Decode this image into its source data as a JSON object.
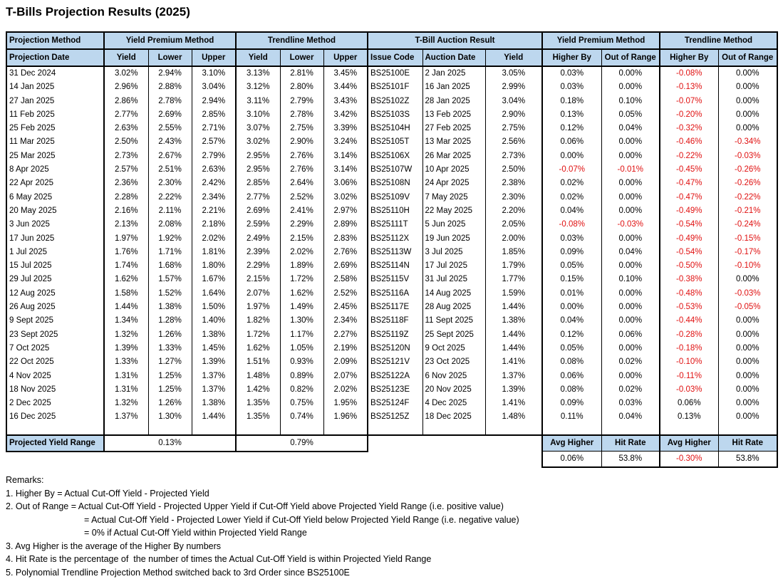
{
  "title": "T-Bills Projection Results (2025)",
  "colors": {
    "header_bg": "#BDD7EE",
    "negative_text": "#E01010",
    "border": "#000000"
  },
  "table": {
    "group_headers": [
      "Projection Method",
      "Yield Premium Method",
      "Trendline Method",
      "T-Bill Auction Result",
      "Yield Premium Method",
      "Trendline Method"
    ],
    "sub_headers": [
      "Projection Date",
      "Yield",
      "Lower",
      "Upper",
      "Yield",
      "Lower",
      "Upper",
      "Issue Code",
      "Auction Date",
      "Yield",
      "Higher By",
      "Out of Range",
      "Higher By",
      "Out of Range"
    ],
    "rows": [
      [
        "31 Dec 2024",
        "3.02%",
        "2.94%",
        "3.10%",
        "3.13%",
        "2.81%",
        "3.45%",
        "BS25100E",
        "2 Jan 2025",
        "3.05%",
        "0.03%",
        "0.00%",
        "-0.08%",
        "0.00%"
      ],
      [
        "14 Jan 2025",
        "2.96%",
        "2.88%",
        "3.04%",
        "3.12%",
        "2.80%",
        "3.44%",
        "BS25101F",
        "16 Jan 2025",
        "2.99%",
        "0.03%",
        "0.00%",
        "-0.13%",
        "0.00%"
      ],
      [
        "27 Jan 2025",
        "2.86%",
        "2.78%",
        "2.94%",
        "3.11%",
        "2.79%",
        "3.43%",
        "BS25102Z",
        "28 Jan 2025",
        "3.04%",
        "0.18%",
        "0.10%",
        "-0.07%",
        "0.00%"
      ],
      [
        "11 Feb 2025",
        "2.77%",
        "2.69%",
        "2.85%",
        "3.10%",
        "2.78%",
        "3.42%",
        "BS25103S",
        "13 Feb 2025",
        "2.90%",
        "0.13%",
        "0.05%",
        "-0.20%",
        "0.00%"
      ],
      [
        "25 Feb 2025",
        "2.63%",
        "2.55%",
        "2.71%",
        "3.07%",
        "2.75%",
        "3.39%",
        "BS25104H",
        "27 Feb 2025",
        "2.75%",
        "0.12%",
        "0.04%",
        "-0.32%",
        "0.00%"
      ],
      [
        "11 Mar 2025",
        "2.50%",
        "2.43%",
        "2.57%",
        "3.02%",
        "2.90%",
        "3.24%",
        "BS25105T",
        "13 Mar 2025",
        "2.56%",
        "0.06%",
        "0.00%",
        "-0.46%",
        "-0.34%"
      ],
      [
        "25 Mar 2025",
        "2.73%",
        "2.67%",
        "2.79%",
        "2.95%",
        "2.76%",
        "3.14%",
        "BS25106X",
        "26 Mar 2025",
        "2.73%",
        "0.00%",
        "0.00%",
        "-0.22%",
        "-0.03%"
      ],
      [
        "8 Apr 2025",
        "2.57%",
        "2.51%",
        "2.63%",
        "2.95%",
        "2.76%",
        "3.14%",
        "BS25107W",
        "10 Apr 2025",
        "2.50%",
        "-0.07%",
        "-0.01%",
        "-0.45%",
        "-0.26%"
      ],
      [
        "22 Apr 2025",
        "2.36%",
        "2.30%",
        "2.42%",
        "2.85%",
        "2.64%",
        "3.06%",
        "BS25108N",
        "24 Apr 2025",
        "2.38%",
        "0.02%",
        "0.00%",
        "-0.47%",
        "-0.26%"
      ],
      [
        "6 May 2025",
        "2.28%",
        "2.22%",
        "2.34%",
        "2.77%",
        "2.52%",
        "3.02%",
        "BS25109V",
        "7 May 2025",
        "2.30%",
        "0.02%",
        "0.00%",
        "-0.47%",
        "-0.22%"
      ],
      [
        "20 May 2025",
        "2.16%",
        "2.11%",
        "2.21%",
        "2.69%",
        "2.41%",
        "2.97%",
        "BS25110H",
        "22 May 2025",
        "2.20%",
        "0.04%",
        "0.00%",
        "-0.49%",
        "-0.21%"
      ],
      [
        "3 Jun 2025",
        "2.13%",
        "2.08%",
        "2.18%",
        "2.59%",
        "2.29%",
        "2.89%",
        "BS25111T",
        "5 Jun 2025",
        "2.05%",
        "-0.08%",
        "-0.03%",
        "-0.54%",
        "-0.24%"
      ],
      [
        "17 Jun 2025",
        "1.97%",
        "1.92%",
        "2.02%",
        "2.49%",
        "2.15%",
        "2.83%",
        "BS25112X",
        "19 Jun 2025",
        "2.00%",
        "0.03%",
        "0.00%",
        "-0.49%",
        "-0.15%"
      ],
      [
        "1 Jul 2025",
        "1.76%",
        "1.71%",
        "1.81%",
        "2.39%",
        "2.02%",
        "2.76%",
        "BS25113W",
        "3 Jul 2025",
        "1.85%",
        "0.09%",
        "0.04%",
        "-0.54%",
        "-0.17%"
      ],
      [
        "15 Jul 2025",
        "1.74%",
        "1.68%",
        "1.80%",
        "2.29%",
        "1.89%",
        "2.69%",
        "BS25114N",
        "17 Jul 2025",
        "1.79%",
        "0.05%",
        "0.00%",
        "-0.50%",
        "-0.10%"
      ],
      [
        "29 Jul 2025",
        "1.62%",
        "1.57%",
        "1.67%",
        "2.15%",
        "1.72%",
        "2.58%",
        "BS25115V",
        "31 Jul 2025",
        "1.77%",
        "0.15%",
        "0.10%",
        "-0.38%",
        "0.00%"
      ],
      [
        "12 Aug 2025",
        "1.58%",
        "1.52%",
        "1.64%",
        "2.07%",
        "1.62%",
        "2.52%",
        "BS25116A",
        "14 Aug 2025",
        "1.59%",
        "0.01%",
        "0.00%",
        "-0.48%",
        "-0.03%"
      ],
      [
        "26 Aug 2025",
        "1.44%",
        "1.38%",
        "1.50%",
        "1.97%",
        "1.49%",
        "2.45%",
        "BS25117E",
        "28 Aug 2025",
        "1.44%",
        "0.00%",
        "0.00%",
        "-0.53%",
        "-0.05%"
      ],
      [
        "9 Sept 2025",
        "1.34%",
        "1.28%",
        "1.40%",
        "1.82%",
        "1.30%",
        "2.34%",
        "BS25118F",
        "11 Sept 2025",
        "1.38%",
        "0.04%",
        "0.00%",
        "-0.44%",
        "0.00%"
      ],
      [
        "23 Sept 2025",
        "1.32%",
        "1.26%",
        "1.38%",
        "1.72%",
        "1.17%",
        "2.27%",
        "BS25119Z",
        "25 Sept 2025",
        "1.44%",
        "0.12%",
        "0.06%",
        "-0.28%",
        "0.00%"
      ],
      [
        "7 Oct 2025",
        "1.39%",
        "1.33%",
        "1.45%",
        "1.62%",
        "1.05%",
        "2.19%",
        "BS25120N",
        "9 Oct 2025",
        "1.44%",
        "0.05%",
        "0.00%",
        "-0.18%",
        "0.00%"
      ],
      [
        "22 Oct 2025",
        "1.33%",
        "1.27%",
        "1.39%",
        "1.51%",
        "0.93%",
        "2.09%",
        "BS25121V",
        "23 Oct 2025",
        "1.41%",
        "0.08%",
        "0.02%",
        "-0.10%",
        "0.00%"
      ],
      [
        "4 Nov 2025",
        "1.31%",
        "1.25%",
        "1.37%",
        "1.48%",
        "0.89%",
        "2.07%",
        "BS25122A",
        "6 Nov 2025",
        "1.37%",
        "0.06%",
        "0.00%",
        "-0.11%",
        "0.00%"
      ],
      [
        "18 Nov 2025",
        "1.31%",
        "1.25%",
        "1.37%",
        "1.42%",
        "0.82%",
        "2.02%",
        "BS25123E",
        "20 Nov 2025",
        "1.39%",
        "0.08%",
        "0.02%",
        "-0.03%",
        "0.00%"
      ],
      [
        "2 Dec 2025",
        "1.32%",
        "1.26%",
        "1.38%",
        "1.35%",
        "0.75%",
        "1.95%",
        "BS25124F",
        "4 Dec 2025",
        "1.41%",
        "0.09%",
        "0.03%",
        "0.06%",
        "0.00%"
      ],
      [
        "16 Dec 2025",
        "1.37%",
        "1.30%",
        "1.44%",
        "1.35%",
        "0.74%",
        "1.96%",
        "BS25125Z",
        "18 Dec 2025",
        "1.48%",
        "0.11%",
        "0.04%",
        "0.13%",
        "0.00%"
      ]
    ],
    "footer": {
      "projected_yield_range_label": "Projected Yield Range",
      "ypm_range": "0.13%",
      "tm_range": "0.79%",
      "summary_headers": [
        "Avg Higher",
        "Hit Rate",
        "Avg Higher",
        "Hit Rate"
      ],
      "summary_values": [
        "0.06%",
        "53.8%",
        "-0.30%",
        "53.8%"
      ]
    }
  },
  "remarks": {
    "label": "Remarks:",
    "lines": [
      {
        "text": "1. Higher By = Actual Cut-Off Yield - Projected Yield",
        "indent": false
      },
      {
        "text": "2. Out of Range = Actual Cut-Off Yield - Projected Upper Yield if Cut-Off Yield above Projected Yield Range (i.e. positive value)",
        "indent": false
      },
      {
        "text": "= Actual Cut-Off Yield - Projected Lower Yield if Cut-Off Yield below Projected Yield Range (i.e. negative value)",
        "indent": true
      },
      {
        "text": "= 0% if Actual Cut-Off Yield within Projected Yield Range",
        "indent": true
      },
      {
        "text": "3. Avg Higher is the average of the Higher By numbers",
        "indent": false
      },
      {
        "text": "4. Hit Rate is the percentage of  the number of times the Actual Cut-Off Yield is within Projected Yield Range",
        "indent": false
      },
      {
        "text": "5. Polynomial Trendline Projection Method switched back to 3rd Order since BS25100E",
        "indent": false
      }
    ]
  }
}
